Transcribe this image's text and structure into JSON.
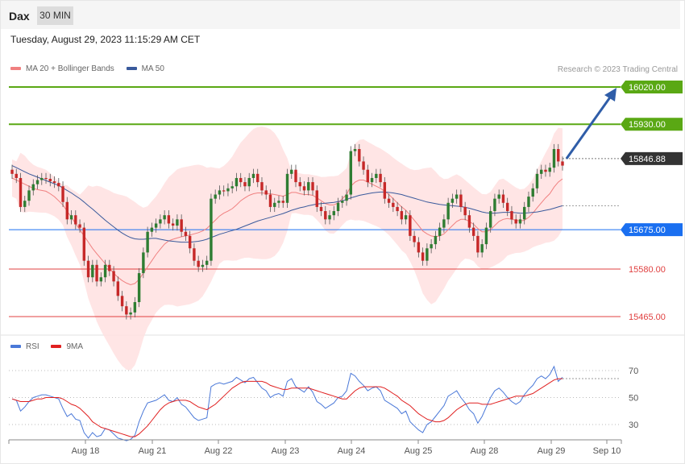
{
  "header": {
    "instrument": "Dax",
    "timeframe": "30 MIN"
  },
  "timestamp": "Tuesday, August 29, 2023 11:15:29 AM CET",
  "credit": "Research © 2023 Trading Central",
  "colors": {
    "ma20": "#f08080",
    "ma50": "#3a5a9c",
    "resistance": "#5aa814",
    "support": "#1a6ff0",
    "support_minor": "#e04040",
    "last": "#333333",
    "rsi": "#4a78d8",
    "rsi9": "#e02020",
    "band": "#ffe0e0"
  },
  "chart_data": [
    {
      "type": "candlestick",
      "legend": [
        {
          "name": "MA 20 + Bollinger Bands",
          "color": "#f08080"
        },
        {
          "name": "MA 50",
          "color": "#3a5a9c"
        }
      ],
      "legend_placement": "top-left",
      "x_ticks": [
        "Aug 18",
        "Aug 21",
        "Aug 22",
        "Aug 23",
        "Aug 24",
        "Aug 25",
        "Aug 28",
        "Aug 29",
        "Sep 10"
      ],
      "y_range": [
        15420,
        16100
      ],
      "levels": [
        {
          "label": "16020.00",
          "value": 16020.0,
          "kind": "resistance"
        },
        {
          "label": "15930.00",
          "value": 15930.0,
          "kind": "resistance"
        },
        {
          "label": "15846.88",
          "value": 15846.88,
          "kind": "last"
        },
        {
          "label": "15675.00",
          "value": 15675.0,
          "kind": "pivot"
        },
        {
          "label": "15580.00",
          "value": 15580.0,
          "kind": "support"
        },
        {
          "label": "15465.00",
          "value": 15465.0,
          "kind": "support"
        }
      ],
      "arrow": {
        "from": 15846.88,
        "to": 16020.0,
        "direction": "up"
      },
      "close": [
        15810,
        15800,
        15730,
        15745,
        15770,
        15785,
        15795,
        15800,
        15798,
        15792,
        15788,
        15780,
        15742,
        15700,
        15710,
        15688,
        15680,
        15600,
        15560,
        15590,
        15550,
        15560,
        15590,
        15575,
        15550,
        15515,
        15490,
        15470,
        15475,
        15500,
        15570,
        15620,
        15670,
        15680,
        15690,
        15700,
        15710,
        15690,
        15685,
        15700,
        15670,
        15660,
        15630,
        15600,
        15585,
        15590,
        15600,
        15750,
        15760,
        15770,
        15768,
        15775,
        15780,
        15800,
        15790,
        15780,
        15800,
        15810,
        15790,
        15770,
        15760,
        15730,
        15740,
        15745,
        15740,
        15810,
        15820,
        15790,
        15780,
        15770,
        15790,
        15770,
        15730,
        15720,
        15700,
        15710,
        15720,
        15740,
        15745,
        15760,
        15865,
        15870,
        15840,
        15820,
        15790,
        15800,
        15810,
        15790,
        15750,
        15740,
        15730,
        15720,
        15700,
        15710,
        15660,
        15645,
        15620,
        15600,
        15630,
        15640,
        15660,
        15680,
        15700,
        15740,
        15750,
        15760,
        15730,
        15710,
        15680,
        15660,
        15620,
        15640,
        15680,
        15720,
        15750,
        15760,
        15740,
        15720,
        15700,
        15690,
        15700,
        15730,
        15755,
        15775,
        15810,
        15820,
        15815,
        15825,
        15870,
        15840,
        15830
      ],
      "ma20": [
        15800,
        15795,
        15790,
        15785,
        15780,
        15775,
        15772,
        15770,
        15768,
        15762,
        15755,
        15745,
        15735,
        15720,
        15705,
        15690,
        15675,
        15660,
        15645,
        15630,
        15617,
        15605,
        15593,
        15582,
        15570,
        15560,
        15552,
        15546,
        15542,
        15545,
        15555,
        15570,
        15585,
        15600,
        15615,
        15628,
        15640,
        15648,
        15652,
        15655,
        15658,
        15660,
        15662,
        15665,
        15668,
        15672,
        15678,
        15688,
        15698,
        15708,
        15715,
        15720,
        15726,
        15735,
        15745,
        15752,
        15758,
        15762,
        15764,
        15764,
        15763,
        15762,
        15760,
        15758,
        15756,
        15760,
        15765,
        15765,
        15762,
        15760,
        15760,
        15758,
        15752,
        15745,
        15738,
        15735,
        15735,
        15740,
        15750,
        15760,
        15780,
        15790,
        15795,
        15795,
        15790,
        15785,
        15780,
        15775,
        15768,
        15760,
        15750,
        15740,
        15730,
        15722,
        15710,
        15698,
        15685,
        15672,
        15665,
        15660,
        15658,
        15660,
        15665,
        15675,
        15685,
        15695,
        15700,
        15700,
        15695,
        15688,
        15678,
        15670,
        15670,
        15675,
        15685,
        15695,
        15700,
        15702,
        15700,
        15698,
        15696,
        15698,
        15705,
        15715,
        15728,
        15740,
        15752,
        15762,
        15778,
        15790,
        15798
      ],
      "ma50": [
        15830,
        15825,
        15820,
        15815,
        15810,
        15806,
        15802,
        15798,
        15794,
        15790,
        15786,
        15782,
        15776,
        15770,
        15764,
        15757,
        15750,
        15742,
        15733,
        15725,
        15716,
        15707,
        15698,
        15690,
        15682,
        15674,
        15667,
        15661,
        15656,
        15653,
        15652,
        15652,
        15653,
        15654,
        15654,
        15652,
        15650,
        15648,
        15647,
        15646,
        15645,
        15645,
        15645,
        15646,
        15647,
        15649,
        15652,
        15656,
        15660,
        15664,
        15667,
        15670,
        15673,
        15676,
        15680,
        15684,
        15688,
        15692,
        15696,
        15699,
        15702,
        15705,
        15708,
        15711,
        15714,
        15718,
        15722,
        15725,
        15728,
        15730,
        15733,
        15735,
        15737,
        15738,
        15739,
        15740,
        15741,
        15743,
        15745,
        15748,
        15752,
        15755,
        15758,
        15760,
        15762,
        15764,
        15765,
        15766,
        15766,
        15765,
        15764,
        15762,
        15760,
        15757,
        15754,
        15751,
        15748,
        15745,
        15742,
        15740,
        15738,
        15736,
        15735,
        15734,
        15733,
        15732,
        15731,
        15729,
        15727,
        15724,
        15721,
        15718,
        15716,
        15715,
        15715,
        15716,
        15717,
        15717,
        15717,
        15716,
        15715,
        15715,
        15716,
        15717,
        15718,
        15720,
        15722,
        15724,
        15727,
        15730,
        15733
      ]
    },
    {
      "type": "line",
      "legend": [
        {
          "name": "RSI",
          "color": "#4a78d8"
        },
        {
          "name": "9MA",
          "color": "#e02020"
        }
      ],
      "legend_placement": "top-left",
      "y_range": [
        20,
        80
      ],
      "y_ticks": [
        30,
        50,
        70
      ],
      "rsi": [
        49,
        48,
        40,
        43,
        47,
        50,
        51,
        52,
        52,
        51,
        50,
        49,
        42,
        36,
        38,
        34,
        33,
        24,
        20,
        24,
        21,
        22,
        27,
        26,
        23,
        20,
        19,
        18,
        19,
        22,
        32,
        40,
        46,
        47,
        48,
        50,
        52,
        48,
        47,
        50,
        45,
        43,
        39,
        35,
        33,
        34,
        35,
        58,
        60,
        61,
        60,
        61,
        62,
        65,
        63,
        61,
        64,
        65,
        61,
        57,
        55,
        50,
        52,
        53,
        51,
        62,
        64,
        58,
        56,
        54,
        58,
        54,
        47,
        45,
        42,
        44,
        46,
        50,
        51,
        55,
        68,
        66,
        62,
        59,
        55,
        57,
        58,
        55,
        48,
        46,
        44,
        42,
        38,
        40,
        32,
        29,
        26,
        24,
        30,
        32,
        36,
        40,
        44,
        51,
        53,
        55,
        50,
        46,
        41,
        38,
        31,
        36,
        43,
        50,
        55,
        57,
        54,
        50,
        47,
        45,
        47,
        52,
        56,
        59,
        64,
        66,
        64,
        67,
        73,
        62,
        65
      ],
      "ma9": [
        49,
        48,
        47,
        47,
        47,
        48,
        49,
        49,
        50,
        50,
        50,
        50,
        49,
        47,
        45,
        44,
        42,
        39,
        36,
        32,
        30,
        28,
        27,
        26,
        25,
        24,
        23,
        22,
        21,
        21,
        23,
        26,
        29,
        33,
        37,
        41,
        44,
        46,
        47,
        48,
        48,
        48,
        47,
        45,
        43,
        42,
        41,
        43,
        45,
        48,
        51,
        54,
        57,
        59,
        61,
        62,
        62,
        62,
        62,
        62,
        61,
        59,
        58,
        57,
        56,
        56,
        57,
        57,
        57,
        57,
        57,
        56,
        55,
        54,
        53,
        52,
        51,
        50,
        49,
        49,
        52,
        55,
        57,
        58,
        58,
        58,
        58,
        58,
        57,
        55,
        53,
        51,
        48,
        46,
        44,
        41,
        38,
        36,
        34,
        33,
        32,
        32,
        33,
        35,
        38,
        41,
        43,
        45,
        46,
        46,
        46,
        45,
        45,
        45,
        46,
        47,
        48,
        49,
        50,
        51,
        51,
        51,
        52,
        53,
        55,
        57,
        59,
        61,
        63,
        64,
        64
      ]
    }
  ]
}
